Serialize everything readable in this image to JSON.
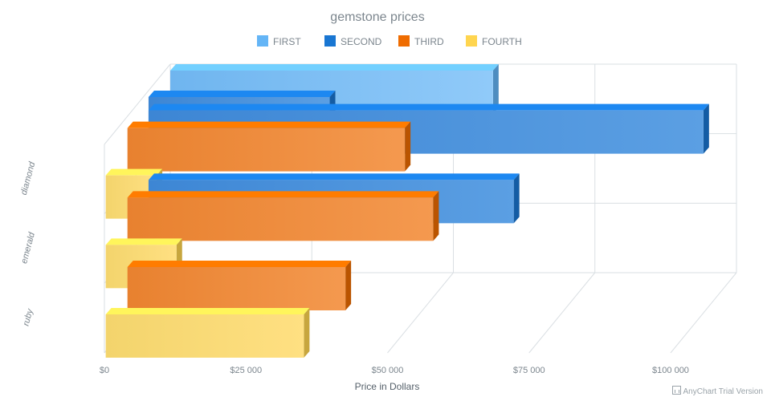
{
  "chart_data": {
    "type": "bar",
    "orientation": "horizontal",
    "three_d": true,
    "title": "gemstone prices",
    "xlabel": "Price in Dollars",
    "ylabel": "",
    "categories": [
      "diamond",
      "emerald",
      "ruby"
    ],
    "xlim": [
      0,
      100000
    ],
    "x_ticks": [
      "$0",
      "$25 000",
      "$50 000",
      "$75 000",
      "$100 000"
    ],
    "grid": true,
    "legend_position": "top",
    "series": [
      {
        "name": "FIRST",
        "color": "#64b5f6",
        "values": [
          null,
          null,
          null
        ],
        "top_value": 57000
      },
      {
        "name": "SECOND",
        "color": "#1976d2",
        "values": [
          98000,
          64500,
          null
        ],
        "top_value": 32000
      },
      {
        "name": "THIRD",
        "color": "#ef6c00",
        "values": [
          49000,
          54000,
          38500
        ]
      },
      {
        "name": "FOURTH",
        "color": "#ffd54f",
        "values": [
          9000,
          12500,
          35000
        ]
      }
    ]
  },
  "credits": "AnyChart Trial Version"
}
